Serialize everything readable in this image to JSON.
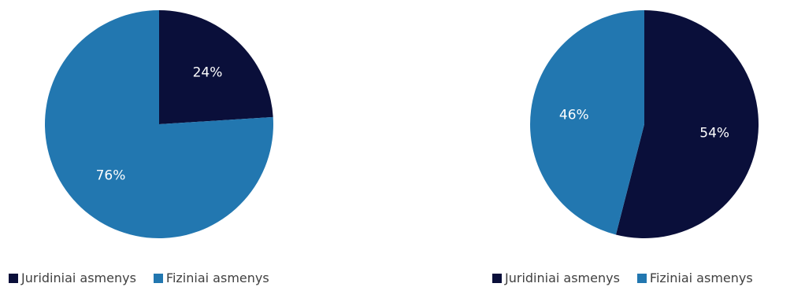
{
  "colors": {
    "juridiniai": "#0a0f3a",
    "fiziniai": "#2277b0",
    "label_text": "#ffffff"
  },
  "chart_data": [
    {
      "type": "pie",
      "title": "",
      "legend_position": "bottom",
      "series": [
        {
          "categories": [
            "Juridiniai asmenys",
            "Fiziniai asmenys"
          ],
          "values": [
            24,
            76
          ]
        }
      ],
      "data_labels": [
        "24%",
        "76%"
      ],
      "legend": [
        {
          "label": "Juridiniai asmenys",
          "color": "#0a0f3a"
        },
        {
          "label": "Fiziniai asmenys",
          "color": "#2277b0"
        }
      ]
    },
    {
      "type": "pie",
      "title": "",
      "legend_position": "bottom",
      "series": [
        {
          "categories": [
            "Juridiniai asmenys",
            "Fiziniai asmenys"
          ],
          "values": [
            54,
            46
          ]
        }
      ],
      "data_labels": [
        "54%",
        "46%"
      ],
      "legend": [
        {
          "label": "Juridiniai asmenys",
          "color": "#0a0f3a"
        },
        {
          "label": "Fiziniai asmenys",
          "color": "#2277b0"
        }
      ]
    }
  ]
}
